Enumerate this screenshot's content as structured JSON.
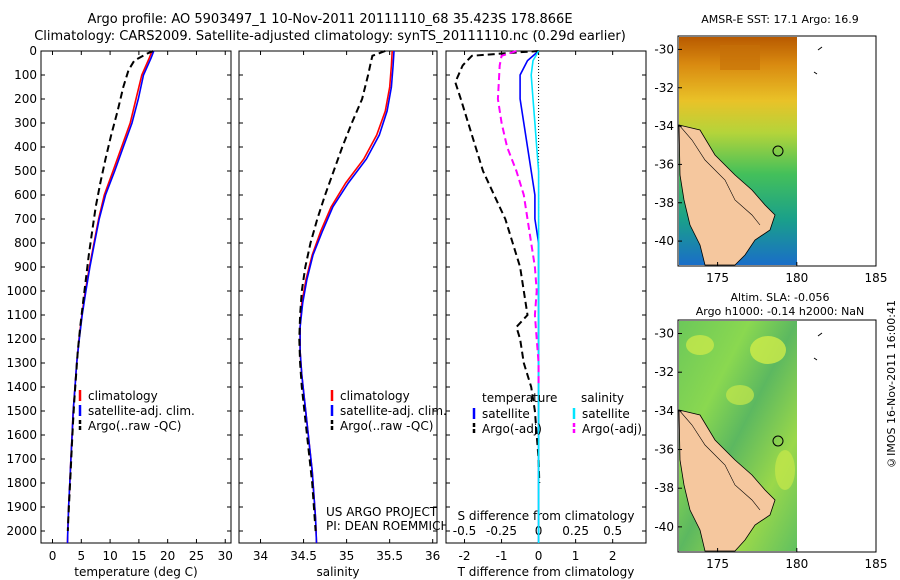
{
  "header": {
    "line1": "Argo profile: AO 5903497_1 10-Nov-2011 20111110_68 35.423S 178.866E",
    "line2": "Climatology: CARS2009. Satellite-adjusted climatology: synTS_20111110.nc (0.29d earlier)"
  },
  "colors": {
    "climatology": "#ff0000",
    "satellite": "#0000ff",
    "argo": "#000000",
    "sat_salinity": "#00e5ff",
    "argo_salinity": "#ff00ff"
  },
  "chart_data": [
    {
      "type": "line",
      "xlabel": "temperature (deg C)",
      "xticks": [
        "0",
        "5",
        "10",
        "15",
        "20",
        "25",
        "30"
      ],
      "xlim": [
        -2,
        31
      ],
      "ylim": [
        0,
        2050
      ],
      "yticks": [
        "0",
        "100",
        "200",
        "300",
        "400",
        "500",
        "600",
        "700",
        "800",
        "900",
        "1000",
        "1100",
        "1200",
        "1300",
        "1400",
        "1500",
        "1600",
        "1700",
        "1800",
        "1900",
        "2000"
      ],
      "legend": [
        "climatology",
        "satellite-adj. clim.",
        "Argo(..raw -QC)"
      ],
      "series": [
        {
          "name": "climatology",
          "style": "solid",
          "color": "#ff0000",
          "points": [
            [
              17.3,
              0
            ],
            [
              16.8,
              30
            ],
            [
              15.5,
              100
            ],
            [
              14.5,
              200
            ],
            [
              13.5,
              300
            ],
            [
              12,
              400
            ],
            [
              10.5,
              500
            ],
            [
              9,
              600
            ],
            [
              8,
              700
            ],
            [
              7.2,
              800
            ],
            [
              6.4,
              900
            ],
            [
              5.7,
              1000
            ],
            [
              5.1,
              1100
            ],
            [
              4.6,
              1200
            ],
            [
              4.2,
              1300
            ],
            [
              3.9,
              1400
            ],
            [
              3.6,
              1500
            ],
            [
              3.4,
              1600
            ],
            [
              3.2,
              1700
            ],
            [
              3,
              1800
            ],
            [
              2.8,
              1900
            ],
            [
              2.65,
              2000
            ],
            [
              2.6,
              2050
            ]
          ]
        },
        {
          "name": "satellite-adj. clim.",
          "style": "solid",
          "color": "#0000ff",
          "points": [
            [
              17.6,
              0
            ],
            [
              17.1,
              30
            ],
            [
              15.8,
              100
            ],
            [
              14.9,
              200
            ],
            [
              13.8,
              300
            ],
            [
              12.3,
              400
            ],
            [
              10.8,
              500
            ],
            [
              9.2,
              600
            ],
            [
              8.1,
              700
            ],
            [
              7.3,
              800
            ],
            [
              6.5,
              900
            ],
            [
              5.8,
              1000
            ],
            [
              5.15,
              1100
            ],
            [
              4.65,
              1200
            ],
            [
              4.2,
              1300
            ],
            [
              3.9,
              1400
            ],
            [
              3.6,
              1500
            ],
            [
              3.4,
              1600
            ],
            [
              3.2,
              1700
            ],
            [
              3,
              1800
            ],
            [
              2.8,
              1900
            ],
            [
              2.65,
              2000
            ],
            [
              2.6,
              2050
            ]
          ]
        },
        {
          "name": "Argo(..raw -QC)",
          "style": "dash",
          "color": "#000000",
          "points": [
            [
              17.5,
              0
            ],
            [
              16.5,
              10
            ],
            [
              14.2,
              40
            ],
            [
              13.2,
              80
            ],
            [
              12.3,
              150
            ],
            [
              11.3,
              250
            ],
            [
              10.2,
              350
            ],
            [
              9.2,
              450
            ],
            [
              8.3,
              550
            ],
            [
              7.5,
              650
            ],
            [
              6.9,
              750
            ],
            [
              6.3,
              850
            ],
            [
              5.8,
              950
            ],
            [
              5.3,
              1050
            ],
            [
              4.8,
              1150
            ],
            [
              4.4,
              1250
            ],
            [
              4.1,
              1350
            ],
            [
              3.8,
              1450
            ],
            [
              3.55,
              1550
            ],
            [
              3.35,
              1650
            ],
            [
              3.15,
              1750
            ],
            [
              2.95,
              1850
            ],
            [
              2.75,
              1950
            ],
            [
              2.65,
              2000
            ]
          ]
        }
      ]
    },
    {
      "type": "line",
      "xlabel": "salinity",
      "xticks": [
        "34",
        "34.5",
        "35",
        "35.5",
        "36"
      ],
      "xlim": [
        33.75,
        36.05
      ],
      "ylim": [
        0,
        2050
      ],
      "legend": [
        "climatology",
        "satellite-adj. clim.",
        "Argo(..raw -QC)"
      ],
      "annotation": [
        "US ARGO PROJECT",
        "PI: DEAN ROEMMICH"
      ],
      "series": [
        {
          "name": "climatology",
          "style": "solid",
          "color": "#ff0000",
          "points": [
            [
              35.53,
              0
            ],
            [
              35.52,
              60
            ],
            [
              35.5,
              150
            ],
            [
              35.45,
              250
            ],
            [
              35.35,
              350
            ],
            [
              35.2,
              450
            ],
            [
              34.99,
              550
            ],
            [
              34.82,
              650
            ],
            [
              34.7,
              750
            ],
            [
              34.6,
              850
            ],
            [
              34.53,
              950
            ],
            [
              34.48,
              1050
            ],
            [
              34.46,
              1150
            ],
            [
              34.46,
              1250
            ],
            [
              34.48,
              1350
            ],
            [
              34.51,
              1450
            ],
            [
              34.54,
              1550
            ],
            [
              34.57,
              1650
            ],
            [
              34.6,
              1750
            ],
            [
              34.62,
              1850
            ],
            [
              34.64,
              1950
            ],
            [
              34.65,
              2050
            ]
          ]
        },
        {
          "name": "satellite-adj. clim.",
          "style": "solid",
          "color": "#0000ff",
          "points": [
            [
              35.55,
              0
            ],
            [
              35.54,
              60
            ],
            [
              35.52,
              150
            ],
            [
              35.47,
              250
            ],
            [
              35.38,
              350
            ],
            [
              35.23,
              450
            ],
            [
              35.02,
              550
            ],
            [
              34.84,
              650
            ],
            [
              34.72,
              750
            ],
            [
              34.61,
              850
            ],
            [
              34.54,
              950
            ],
            [
              34.49,
              1050
            ],
            [
              34.46,
              1150
            ],
            [
              34.46,
              1250
            ],
            [
              34.48,
              1350
            ],
            [
              34.51,
              1450
            ],
            [
              34.54,
              1550
            ],
            [
              34.57,
              1650
            ],
            [
              34.6,
              1750
            ],
            [
              34.62,
              1850
            ],
            [
              34.64,
              1950
            ],
            [
              34.65,
              2050
            ]
          ]
        },
        {
          "name": "Argo(..raw -QC)",
          "style": "dash",
          "color": "#000000",
          "points": [
            [
              35.45,
              0
            ],
            [
              35.3,
              20
            ],
            [
              35.28,
              50
            ],
            [
              35.25,
              100
            ],
            [
              35.18,
              200
            ],
            [
              35.06,
              300
            ],
            [
              34.95,
              400
            ],
            [
              34.85,
              500
            ],
            [
              34.75,
              600
            ],
            [
              34.66,
              700
            ],
            [
              34.58,
              800
            ],
            [
              34.52,
              900
            ],
            [
              34.48,
              1000
            ],
            [
              34.46,
              1100
            ],
            [
              34.45,
              1200
            ],
            [
              34.46,
              1300
            ],
            [
              34.48,
              1400
            ],
            [
              34.51,
              1500
            ],
            [
              34.54,
              1600
            ],
            [
              34.57,
              1700
            ],
            [
              34.6,
              1800
            ],
            [
              34.62,
              1900
            ],
            [
              34.64,
              2000
            ]
          ]
        }
      ]
    },
    {
      "type": "line",
      "xlabel": "T difference from climatology",
      "xlabel_top": "S difference from climatology",
      "xticks": [
        "-2",
        "-1",
        "0",
        "1",
        "2"
      ],
      "xticks_top": [
        "-0.5",
        "-0.25",
        "0",
        "0.25",
        "0.5"
      ],
      "xlim": [
        -2.5,
        2.9
      ],
      "ylim": [
        0,
        2050
      ],
      "legend_temperature_title": "temperature",
      "legend_salinity_title": "salinity",
      "legend_temperature": [
        "satellite",
        "Argo(-adj)"
      ],
      "legend_salinity": [
        "satellite",
        "Argo(-adj)"
      ],
      "series": [
        {
          "name": "satellite",
          "group": "temperature",
          "style": "solid",
          "color": "#0000ff",
          "points": [
            [
              0,
              0
            ],
            [
              -0.3,
              40
            ],
            [
              -0.5,
              100
            ],
            [
              -0.5,
              200
            ],
            [
              -0.4,
              300
            ],
            [
              -0.3,
              400
            ],
            [
              -0.2,
              500
            ],
            [
              -0.1,
              600
            ],
            [
              -0.1,
              700
            ],
            [
              0,
              800
            ],
            [
              0,
              900
            ],
            [
              0,
              1000
            ],
            [
              0,
              1100
            ],
            [
              0,
              1200
            ],
            [
              0,
              1300
            ],
            [
              0,
              1400
            ],
            [
              0,
              1500
            ],
            [
              0,
              1600
            ],
            [
              0,
              1700
            ],
            [
              0,
              1800
            ],
            [
              0,
              1900
            ],
            [
              0,
              2000
            ],
            [
              0,
              2050
            ]
          ]
        },
        {
          "name": "Argo(-adj)",
          "group": "temperature",
          "style": "dash",
          "color": "#000000",
          "points": [
            [
              0,
              0
            ],
            [
              -0.5,
              5
            ],
            [
              -1.8,
              20
            ],
            [
              -2.05,
              60
            ],
            [
              -2.25,
              130
            ],
            [
              -2.1,
              200
            ],
            [
              -1.9,
              300
            ],
            [
              -1.7,
              400
            ],
            [
              -1.5,
              500
            ],
            [
              -1.2,
              600
            ],
            [
              -0.9,
              700
            ],
            [
              -0.7,
              800
            ],
            [
              -0.5,
              900
            ],
            [
              -0.4,
              1000
            ],
            [
              -0.3,
              1100
            ],
            [
              -0.6,
              1150
            ],
            [
              -0.5,
              1200
            ],
            [
              -0.4,
              1300
            ],
            [
              -0.2,
              1400
            ],
            [
              -0.1,
              1500
            ],
            [
              -0.05,
              1600
            ],
            [
              0,
              1700
            ],
            [
              0.02,
              1800
            ]
          ]
        },
        {
          "name": "satellite",
          "group": "salinity",
          "style": "solid",
          "color": "#00e5ff",
          "points": [
            [
              0,
              0
            ],
            [
              -0.15,
              40
            ],
            [
              -0.2,
              100
            ],
            [
              -0.15,
              200
            ],
            [
              -0.1,
              300
            ],
            [
              -0.05,
              400
            ],
            [
              0,
              500
            ],
            [
              0,
              800
            ],
            [
              0,
              1200
            ],
            [
              0,
              1600
            ],
            [
              0,
              2000
            ],
            [
              0,
              2050
            ]
          ]
        },
        {
          "name": "Argo(-adj)",
          "group": "salinity",
          "style": "dash",
          "color": "#ff00ff",
          "points": [
            [
              -0.6,
              0
            ],
            [
              -1,
              20
            ],
            [
              -1.05,
              60
            ],
            [
              -1.1,
              200
            ],
            [
              -1,
              300
            ],
            [
              -0.85,
              400
            ],
            [
              -0.6,
              500
            ],
            [
              -0.4,
              600
            ],
            [
              -0.3,
              700
            ],
            [
              -0.2,
              800
            ],
            [
              -0.1,
              900
            ],
            [
              -0.05,
              1000
            ],
            [
              -0.1,
              1100
            ],
            [
              -0.05,
              1200
            ],
            [
              0,
              1300
            ],
            [
              0,
              1400
            ]
          ]
        }
      ]
    }
  ],
  "maps": {
    "map1_title": "AMSR-E SST: 17.1 Argo: 16.9",
    "map2_title_line1": "Altim. SLA: -0.056",
    "map2_title_line2": "Argo h1000: -0.14 h2000: NaN",
    "xticks": [
      "175",
      "180",
      "185"
    ],
    "yticks": [
      "-30",
      "-32",
      "-34",
      "-36",
      "-38",
      "-40"
    ],
    "argo_lon": 178.866,
    "argo_lat": -35.423
  },
  "credit": "©IMOS 16-Nov-2011 16:00:41"
}
